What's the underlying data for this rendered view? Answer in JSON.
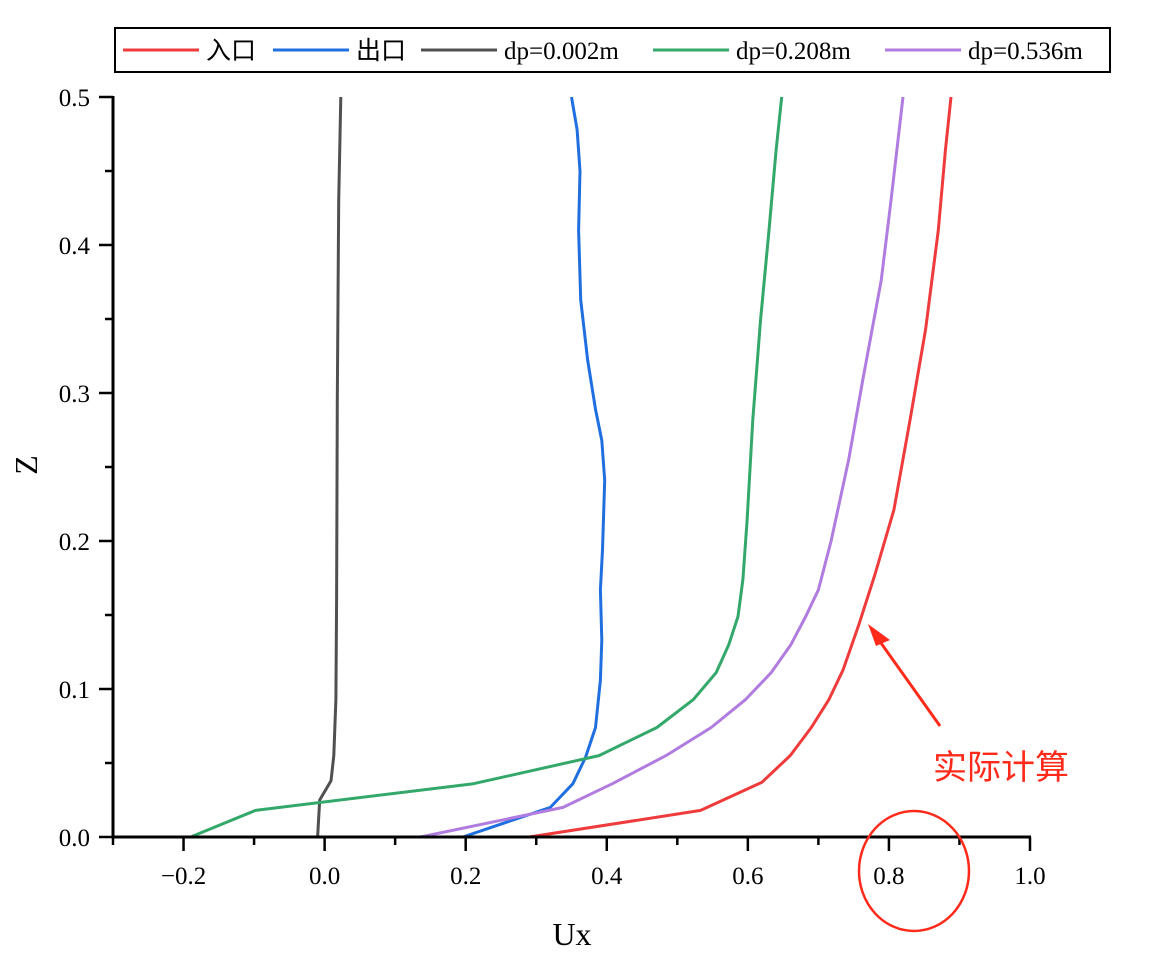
{
  "chart_data": {
    "type": "line",
    "title": "",
    "xlabel": "Ux",
    "ylabel": "Z",
    "xlim": [
      -0.3,
      1.0
    ],
    "ylim": [
      0,
      0.5
    ],
    "xticks": [
      -0.2,
      0.0,
      0.2,
      0.4,
      0.6,
      0.8,
      1.0
    ],
    "xtick_labels": [
      "−0.2",
      "0.0",
      "0.2",
      "0.4",
      "0.6",
      "0.8",
      "1.0"
    ],
    "yticks": [
      0.0,
      0.1,
      0.2,
      0.3,
      0.4,
      0.5
    ],
    "ytick_labels": [
      "0.0",
      "0.1",
      "0.2",
      "0.3",
      "0.4",
      "0.5"
    ],
    "grid": false,
    "legend_position": "top",
    "series": [
      {
        "name": "入口",
        "color": "#ef3b3b",
        "x": [
          0.29,
          0.533,
          0.62,
          0.66,
          0.69,
          0.715,
          0.735,
          0.757,
          0.78,
          0.807,
          0.83,
          0.852,
          0.87,
          0.88,
          0.888
        ],
        "y": [
          0,
          0.018,
          0.037,
          0.055,
          0.074,
          0.093,
          0.113,
          0.143,
          0.177,
          0.221,
          0.282,
          0.343,
          0.41,
          0.464,
          0.5
        ]
      },
      {
        "name": "出口",
        "color": "#1f6fe0",
        "x": [
          0.196,
          0.32,
          0.352,
          0.37,
          0.384,
          0.391,
          0.393,
          0.391,
          0.394,
          0.397,
          0.393,
          0.384,
          0.373,
          0.363,
          0.36,
          0.362,
          0.358,
          0.35
        ],
        "y": [
          0,
          0.02,
          0.036,
          0.054,
          0.074,
          0.106,
          0.133,
          0.167,
          0.194,
          0.241,
          0.268,
          0.289,
          0.322,
          0.363,
          0.41,
          0.45,
          0.478,
          0.5
        ]
      },
      {
        "name": "dp=0.002m",
        "color": "#505050",
        "x": [
          -0.01,
          -0.007,
          0.009,
          0.013,
          0.016,
          0.017,
          0.018,
          0.02,
          0.023
        ],
        "y": [
          0,
          0.025,
          0.038,
          0.055,
          0.093,
          0.16,
          0.295,
          0.43,
          0.5
        ]
      },
      {
        "name": "dp=0.208m",
        "color": "#33a86a",
        "x": [
          -0.19,
          -0.098,
          0.211,
          0.389,
          0.471,
          0.523,
          0.555,
          0.573,
          0.586,
          0.593,
          0.599,
          0.607,
          0.618,
          0.63,
          0.64,
          0.648
        ],
        "y": [
          0,
          0.018,
          0.036,
          0.055,
          0.074,
          0.093,
          0.111,
          0.13,
          0.149,
          0.174,
          0.214,
          0.282,
          0.349,
          0.41,
          0.464,
          0.5
        ]
      },
      {
        "name": "dp=0.536m",
        "color": "#b07ce0",
        "x": [
          0.136,
          0.338,
          0.408,
          0.484,
          0.548,
          0.597,
          0.633,
          0.661,
          0.682,
          0.7,
          0.718,
          0.743,
          0.763,
          0.789,
          0.803,
          0.82
        ],
        "y": [
          0,
          0.02,
          0.036,
          0.055,
          0.074,
          0.093,
          0.111,
          0.13,
          0.149,
          0.167,
          0.2,
          0.255,
          0.309,
          0.376,
          0.43,
          0.5
        ]
      }
    ],
    "annotations": [
      {
        "text": "实际计算",
        "color": "#ff2a1a",
        "points_to": {
          "x": 0.775,
          "y": 0.145
        }
      },
      {
        "shape": "ellipse",
        "color": "#ff2a1a",
        "around_tick": "0.8"
      }
    ]
  }
}
